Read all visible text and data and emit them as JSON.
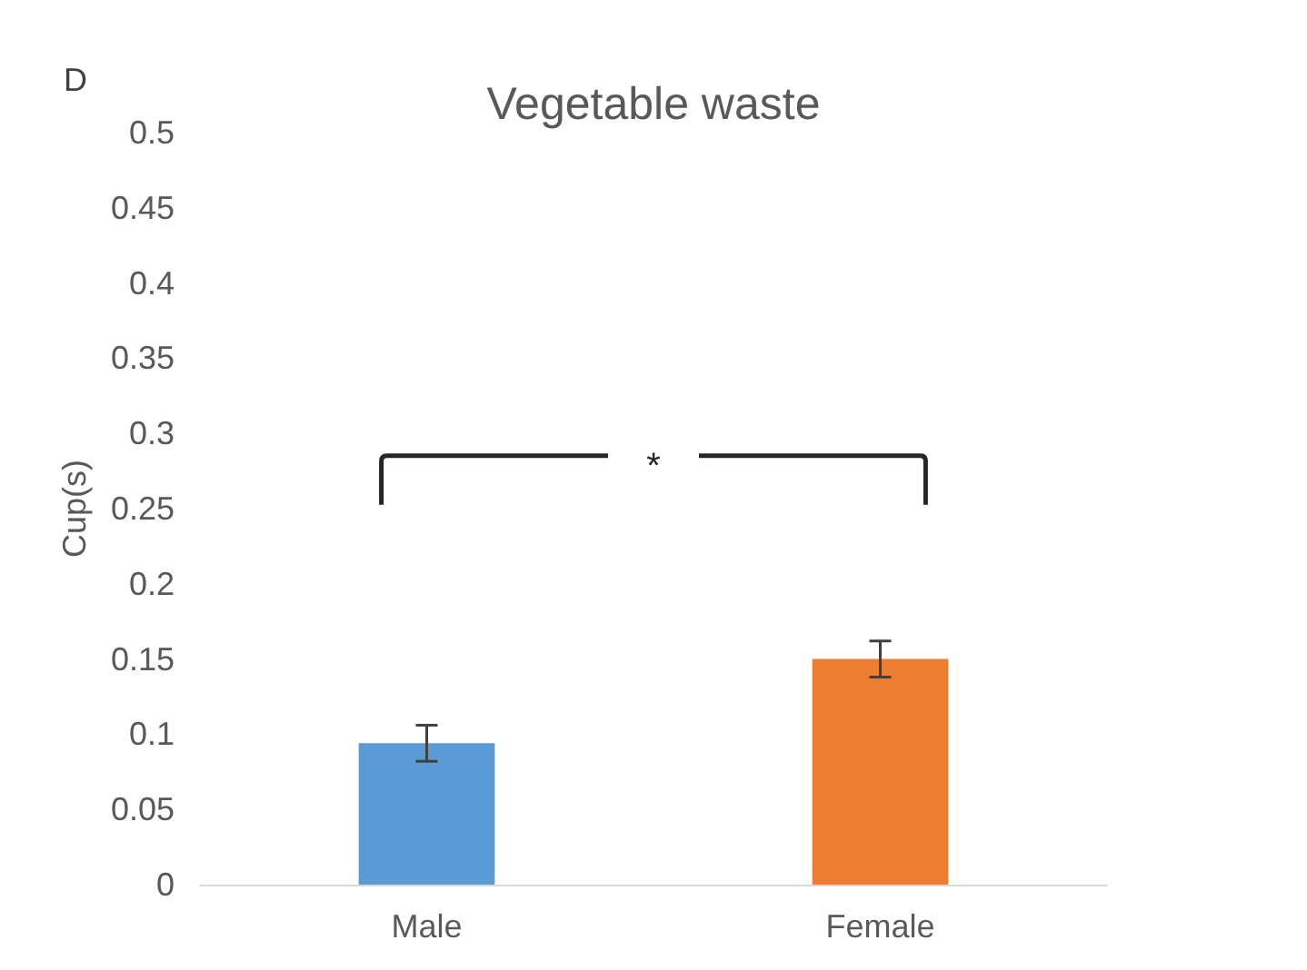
{
  "chart_data": {
    "type": "bar",
    "title": "Vegetable waste",
    "ylabel": "Cup(s)",
    "categories": [
      "Male",
      "Female"
    ],
    "values": [
      0.094,
      0.15
    ],
    "colors": [
      "#5b9bd5",
      "#ed7d31"
    ],
    "errors": [
      0.012,
      0.012
    ],
    "ylim": [
      0,
      0.5
    ],
    "yticks": [
      0,
      0.05,
      0.1,
      0.15,
      0.2,
      0.25,
      0.3,
      0.35,
      0.4,
      0.45,
      0.5
    ],
    "grid": false,
    "annotations": [
      "D",
      "*"
    ]
  }
}
